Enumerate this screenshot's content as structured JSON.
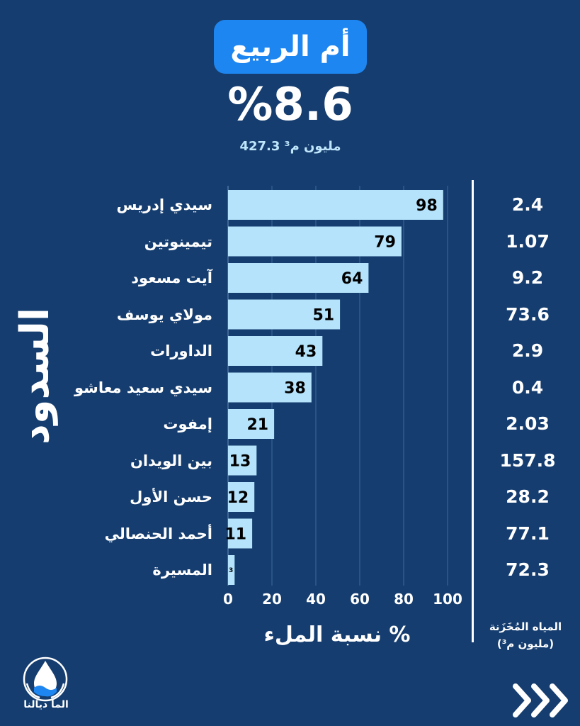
{
  "header": {
    "title": "أم الربيع",
    "overall_fill": "%8.6",
    "overall_volume": "427.3 مليون م³"
  },
  "side_label": "السدود",
  "chart_data": {
    "type": "bar",
    "orientation": "horizontal",
    "categories": [
      "سيدي إدريس",
      "تيمينوتين",
      "آيت مسعود",
      "مولاي يوسف",
      "الداورات",
      "سيدي سعيد معاشو",
      "إمفوت",
      "بين الويدان",
      "حسن الأول",
      "أحمد الحنصالي",
      "المسيرة"
    ],
    "values": [
      98,
      79,
      64,
      51,
      43,
      38,
      21,
      13,
      12,
      11,
      3
    ],
    "value_labels": [
      "98",
      "79",
      "64",
      "51",
      "43",
      "38",
      "21",
      "13",
      "12",
      "11",
      "3"
    ],
    "stored_water": [
      "2.4",
      "1.07",
      "9.2",
      "73.6",
      "2.9",
      "0.4",
      "2.03",
      "157.8",
      "28.2",
      "77.1",
      "72.3"
    ],
    "xlim": [
      0,
      100
    ],
    "xticks": [
      "0",
      "20",
      "40",
      "60",
      "80",
      "100"
    ],
    "xlabel": "نسبة الملء %",
    "stored_label_line1": "المياه المُخَزَنة",
    "stored_label_line2": "(مليون م³)",
    "grid": true
  },
  "brand": {
    "name": "الما ديالنا"
  },
  "colors": {
    "background": "#153d6f",
    "bar": "#b5e3fb",
    "title_pill": "#1e86f0",
    "accent_text": "#bfe6fb"
  }
}
